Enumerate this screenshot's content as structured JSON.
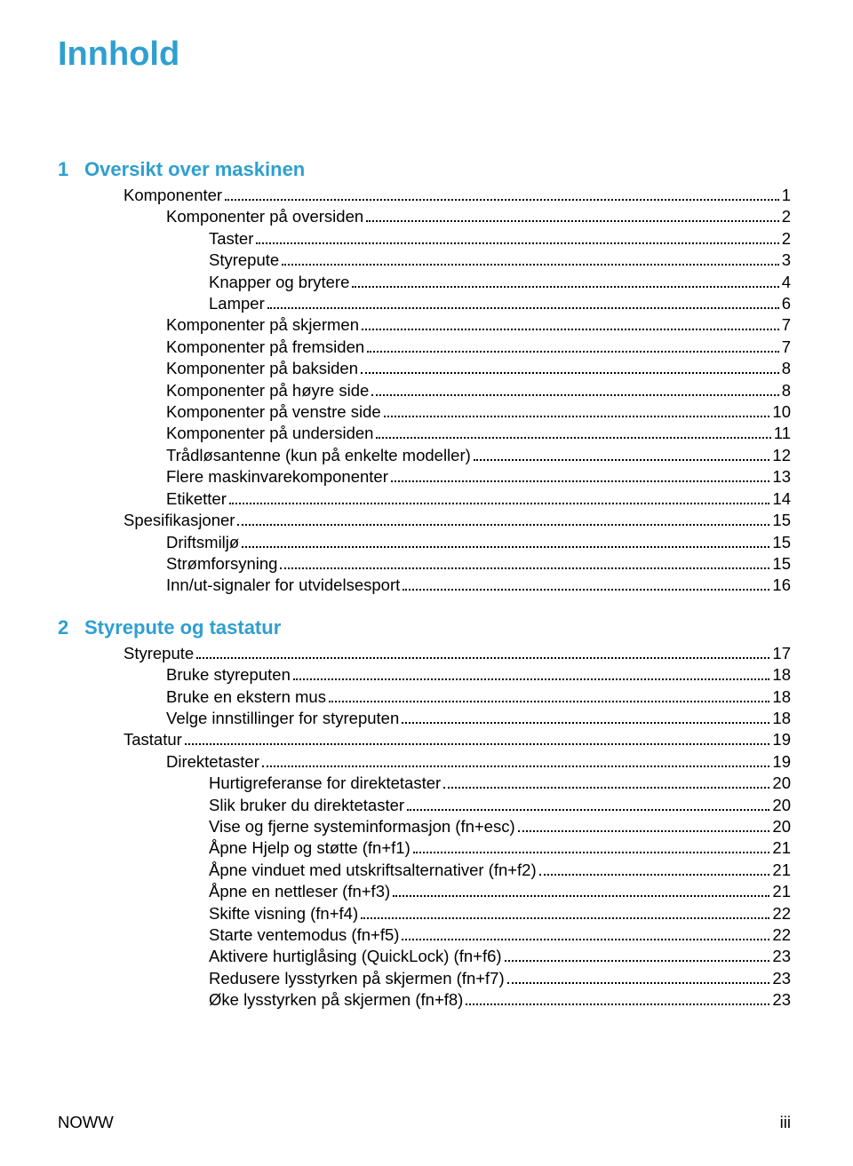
{
  "title": "Innhold",
  "colors": {
    "heading": "#2f9fd0",
    "text": "#000000",
    "background": "#ffffff"
  },
  "typography": {
    "title_fontsize": 38,
    "chapter_fontsize": 22,
    "body_fontsize": 18.5,
    "font_family": "Arial"
  },
  "chapters": [
    {
      "number": "1",
      "title": "Oversikt over maskinen",
      "entries": [
        {
          "level": 1,
          "label": "Komponenter",
          "page": "1"
        },
        {
          "level": 2,
          "label": "Komponenter på oversiden",
          "page": "2"
        },
        {
          "level": 3,
          "label": "Taster",
          "page": "2"
        },
        {
          "level": 3,
          "label": "Styrepute",
          "page": "3"
        },
        {
          "level": 3,
          "label": "Knapper og brytere",
          "page": "4"
        },
        {
          "level": 3,
          "label": "Lamper",
          "page": "6"
        },
        {
          "level": 2,
          "label": "Komponenter på skjermen",
          "page": "7"
        },
        {
          "level": 2,
          "label": "Komponenter på fremsiden",
          "page": "7"
        },
        {
          "level": 2,
          "label": "Komponenter på baksiden",
          "page": "8"
        },
        {
          "level": 2,
          "label": "Komponenter på høyre side",
          "page": "8"
        },
        {
          "level": 2,
          "label": "Komponenter på venstre side",
          "page": "10"
        },
        {
          "level": 2,
          "label": "Komponenter på undersiden",
          "page": "11"
        },
        {
          "level": 2,
          "label": "Trådløsantenne (kun på enkelte modeller)",
          "page": "12"
        },
        {
          "level": 2,
          "label": "Flere maskinvarekomponenter",
          "page": "13"
        },
        {
          "level": 2,
          "label": "Etiketter",
          "page": "14"
        },
        {
          "level": 1,
          "label": "Spesifikasjoner",
          "page": "15"
        },
        {
          "level": 2,
          "label": "Driftsmiljø",
          "page": "15"
        },
        {
          "level": 2,
          "label": "Strømforsyning",
          "page": "15"
        },
        {
          "level": 2,
          "label": "Inn/ut-signaler for utvidelsesport",
          "page": "16"
        }
      ]
    },
    {
      "number": "2",
      "title": "Styrepute og tastatur",
      "entries": [
        {
          "level": 1,
          "label": "Styrepute",
          "page": "17"
        },
        {
          "level": 2,
          "label": "Bruke styreputen",
          "page": "18"
        },
        {
          "level": 2,
          "label": "Bruke en ekstern mus",
          "page": "18"
        },
        {
          "level": 2,
          "label": "Velge innstillinger for styreputen",
          "page": "18"
        },
        {
          "level": 1,
          "label": "Tastatur",
          "page": "19"
        },
        {
          "level": 2,
          "label": "Direktetaster",
          "page": "19"
        },
        {
          "level": 3,
          "label": "Hurtigreferanse for direktetaster",
          "page": "20"
        },
        {
          "level": 3,
          "label": "Slik bruker du direktetaster",
          "page": "20"
        },
        {
          "level": 3,
          "label": "Vise og fjerne systeminformasjon (fn+esc)",
          "page": "20"
        },
        {
          "level": 3,
          "label": "Åpne Hjelp og støtte (fn+f1)",
          "page": "21"
        },
        {
          "level": 3,
          "label": "Åpne vinduet med utskriftsalternativer (fn+f2)",
          "page": "21"
        },
        {
          "level": 3,
          "label": "Åpne en nettleser (fn+f3)",
          "page": "21"
        },
        {
          "level": 3,
          "label": "Skifte visning (fn+f4)",
          "page": "22"
        },
        {
          "level": 3,
          "label": "Starte ventemodus (fn+f5)",
          "page": "22"
        },
        {
          "level": 3,
          "label": "Aktivere hurtiglåsing (QuickLock) (fn+f6)",
          "page": "23"
        },
        {
          "level": 3,
          "label": "Redusere lysstyrken på skjermen (fn+f7)",
          "page": "23"
        },
        {
          "level": 3,
          "label": "Øke lysstyrken på skjermen (fn+f8)",
          "page": "23"
        }
      ]
    }
  ],
  "footer": {
    "left": "NOWW",
    "right": "iii"
  }
}
